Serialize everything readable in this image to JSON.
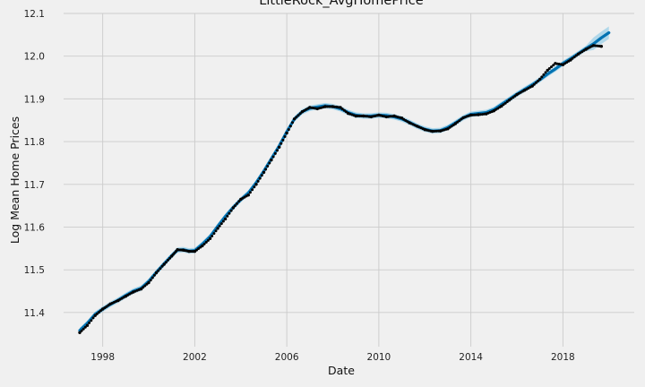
{
  "chart_data": {
    "type": "line",
    "title": "LittleRock_AvgHomePrice",
    "xlabel": "Date",
    "ylabel": "Log Mean Home Prices",
    "xlim": [
      1996.3,
      2021.1
    ],
    "ylim": [
      11.32,
      12.1
    ],
    "x_ticks": [
      {
        "value": 1998,
        "label": "1998"
      },
      {
        "value": 2002,
        "label": "2002"
      },
      {
        "value": 2006,
        "label": "2006"
      },
      {
        "value": 2010,
        "label": "2010"
      },
      {
        "value": 2014,
        "label": "2014"
      },
      {
        "value": 2018,
        "label": "2018"
      }
    ],
    "y_ticks": [
      {
        "value": 11.4,
        "label": "11.4"
      },
      {
        "value": 11.5,
        "label": "11.5"
      },
      {
        "value": 11.6,
        "label": "11.6"
      },
      {
        "value": 11.7,
        "label": "11.7"
      },
      {
        "value": 11.8,
        "label": "11.8"
      },
      {
        "value": 11.9,
        "label": "11.9"
      },
      {
        "value": 12.0,
        "label": "12.0"
      },
      {
        "value": 12.1,
        "label": "12.1"
      }
    ],
    "grid": true,
    "series": [
      {
        "name": "",
        "kind": "observed",
        "style": "points",
        "color": "#000000",
        "points": [
          [
            1997.0,
            11.353
          ],
          [
            1997.33,
            11.37
          ],
          [
            1997.67,
            11.393
          ],
          [
            1998.0,
            11.408
          ],
          [
            1998.33,
            11.42
          ],
          [
            1998.67,
            11.428
          ],
          [
            1999.0,
            11.438
          ],
          [
            1999.33,
            11.448
          ],
          [
            1999.67,
            11.455
          ],
          [
            2000.0,
            11.47
          ],
          [
            2000.33,
            11.493
          ],
          [
            2000.67,
            11.513
          ],
          [
            2001.0,
            11.532
          ],
          [
            2001.25,
            11.547
          ],
          [
            2001.5,
            11.546
          ],
          [
            2001.75,
            11.543
          ],
          [
            2002.0,
            11.543
          ],
          [
            2002.33,
            11.556
          ],
          [
            2002.67,
            11.573
          ],
          [
            2003.0,
            11.597
          ],
          [
            2003.33,
            11.619
          ],
          [
            2003.67,
            11.645
          ],
          [
            2004.0,
            11.665
          ],
          [
            2004.33,
            11.675
          ],
          [
            2004.67,
            11.7
          ],
          [
            2005.0,
            11.728
          ],
          [
            2005.33,
            11.757
          ],
          [
            2005.67,
            11.787
          ],
          [
            2006.0,
            11.82
          ],
          [
            2006.33,
            11.853
          ],
          [
            2006.67,
            11.87
          ],
          [
            2007.0,
            11.88
          ],
          [
            2007.33,
            11.877
          ],
          [
            2007.67,
            11.882
          ],
          [
            2008.0,
            11.882
          ],
          [
            2008.33,
            11.88
          ],
          [
            2008.67,
            11.866
          ],
          [
            2009.0,
            11.86
          ],
          [
            2009.33,
            11.86
          ],
          [
            2009.67,
            11.858
          ],
          [
            2010.0,
            11.862
          ],
          [
            2010.33,
            11.858
          ],
          [
            2010.67,
            11.86
          ],
          [
            2011.0,
            11.855
          ],
          [
            2011.33,
            11.844
          ],
          [
            2011.67,
            11.836
          ],
          [
            2012.0,
            11.828
          ],
          [
            2012.33,
            11.824
          ],
          [
            2012.67,
            11.825
          ],
          [
            2013.0,
            11.83
          ],
          [
            2013.33,
            11.842
          ],
          [
            2013.67,
            11.856
          ],
          [
            2014.0,
            11.862
          ],
          [
            2014.33,
            11.863
          ],
          [
            2014.67,
            11.865
          ],
          [
            2015.0,
            11.872
          ],
          [
            2015.33,
            11.883
          ],
          [
            2015.67,
            11.897
          ],
          [
            2016.0,
            11.91
          ],
          [
            2016.33,
            11.92
          ],
          [
            2016.67,
            11.93
          ],
          [
            2017.0,
            11.946
          ],
          [
            2017.33,
            11.967
          ],
          [
            2017.67,
            11.983
          ],
          [
            2018.0,
            11.98
          ],
          [
            2018.33,
            11.991
          ],
          [
            2018.67,
            12.005
          ],
          [
            2019.0,
            12.016
          ],
          [
            2019.33,
            12.025
          ],
          [
            2019.67,
            12.023
          ]
        ]
      },
      {
        "name": "",
        "kind": "fitted",
        "style": "line",
        "color": "#0072b2",
        "points": [
          [
            1997.0,
            11.358
          ],
          [
            1997.33,
            11.375
          ],
          [
            1997.67,
            11.396
          ],
          [
            1998.0,
            11.408
          ],
          [
            1998.33,
            11.419
          ],
          [
            1998.67,
            11.429
          ],
          [
            1999.0,
            11.44
          ],
          [
            1999.33,
            11.45
          ],
          [
            1999.67,
            11.457
          ],
          [
            2000.0,
            11.473
          ],
          [
            2000.33,
            11.494
          ],
          [
            2000.67,
            11.514
          ],
          [
            2001.0,
            11.533
          ],
          [
            2001.25,
            11.546
          ],
          [
            2001.5,
            11.547
          ],
          [
            2001.75,
            11.544
          ],
          [
            2002.0,
            11.545
          ],
          [
            2002.33,
            11.56
          ],
          [
            2002.67,
            11.578
          ],
          [
            2003.0,
            11.602
          ],
          [
            2003.33,
            11.625
          ],
          [
            2003.67,
            11.646
          ],
          [
            2004.0,
            11.664
          ],
          [
            2004.33,
            11.68
          ],
          [
            2004.67,
            11.704
          ],
          [
            2005.0,
            11.731
          ],
          [
            2005.33,
            11.76
          ],
          [
            2005.67,
            11.79
          ],
          [
            2006.0,
            11.823
          ],
          [
            2006.33,
            11.853
          ],
          [
            2006.67,
            11.87
          ],
          [
            2007.0,
            11.878
          ],
          [
            2007.33,
            11.881
          ],
          [
            2007.67,
            11.884
          ],
          [
            2008.0,
            11.882
          ],
          [
            2008.33,
            11.877
          ],
          [
            2008.67,
            11.868
          ],
          [
            2009.0,
            11.862
          ],
          [
            2009.33,
            11.86
          ],
          [
            2009.67,
            11.86
          ],
          [
            2010.0,
            11.862
          ],
          [
            2010.33,
            11.861
          ],
          [
            2010.67,
            11.858
          ],
          [
            2011.0,
            11.853
          ],
          [
            2011.33,
            11.845
          ],
          [
            2011.67,
            11.836
          ],
          [
            2012.0,
            11.829
          ],
          [
            2012.33,
            11.825
          ],
          [
            2012.67,
            11.826
          ],
          [
            2013.0,
            11.833
          ],
          [
            2013.33,
            11.844
          ],
          [
            2013.67,
            11.856
          ],
          [
            2014.0,
            11.864
          ],
          [
            2014.33,
            11.866
          ],
          [
            2014.67,
            11.868
          ],
          [
            2015.0,
            11.875
          ],
          [
            2015.33,
            11.887
          ],
          [
            2015.67,
            11.899
          ],
          [
            2016.0,
            11.911
          ],
          [
            2016.33,
            11.922
          ],
          [
            2016.67,
            11.933
          ],
          [
            2017.0,
            11.945
          ],
          [
            2017.33,
            11.958
          ],
          [
            2017.67,
            11.97
          ],
          [
            2018.0,
            11.983
          ],
          [
            2018.33,
            11.994
          ],
          [
            2018.67,
            12.006
          ],
          [
            2019.0,
            12.018
          ],
          [
            2019.33,
            12.029
          ],
          [
            2019.67,
            12.043
          ],
          [
            2020.0,
            12.055
          ]
        ]
      }
    ]
  }
}
